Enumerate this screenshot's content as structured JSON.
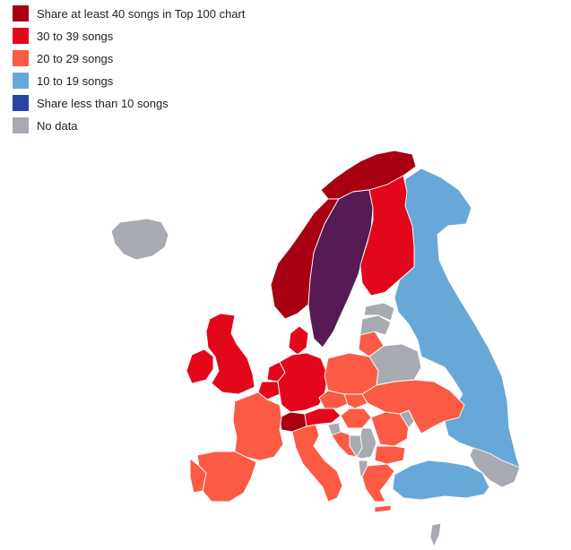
{
  "legend": {
    "items": [
      {
        "id": "40plus",
        "label": "Share at least 40 songs in Top 100 chart",
        "color": "#a80010"
      },
      {
        "id": "30to39",
        "label": "30 to 39 songs",
        "color": "#e3071b"
      },
      {
        "id": "20to29",
        "label": "20 to 29 songs",
        "color": "#fb5a44"
      },
      {
        "id": "10to19",
        "label": "10 to 19 songs",
        "color": "#68a8d9"
      },
      {
        "id": "under10",
        "label": "Share less than 10 songs",
        "color": "#2644a6"
      },
      {
        "id": "nodata",
        "label": "No data",
        "color": "#a8aab2"
      }
    ]
  },
  "highlight_color": "#561a54",
  "countries": {
    "sweden": "highlight",
    "norway": "40plus",
    "northern_norway": "40plus",
    "finland": "30to39",
    "uk": "30to39",
    "ireland": "30to39",
    "denmark": "30to39",
    "germany": "30to39",
    "netherlands": "30to39",
    "belgium": "30to39",
    "switzerland": "40plus",
    "austria": "30to39",
    "france": "20to29",
    "spain": "20to29",
    "portugal": "20to29",
    "italy": "20to29",
    "poland": "20to29",
    "czechia": "20to29",
    "slovakia": "20to29",
    "hungary": "20to29",
    "romania": "20to29",
    "bulgaria": "20to29",
    "ukraine": "20to29",
    "lithuania": "20to29",
    "greece": "20to29",
    "croatia": "20to29",
    "crete": "20to29",
    "russia": "10to19",
    "turkey": "10to19",
    "iceland": "nodata",
    "belarus": "nodata",
    "estonia": "nodata",
    "latvia": "nodata",
    "serbia": "nodata",
    "bosnia": "nodata",
    "albania": "nodata",
    "moldova": "nodata",
    "slovenia": "nodata",
    "caucasus": "nodata",
    "cyprus": "nodata"
  }
}
